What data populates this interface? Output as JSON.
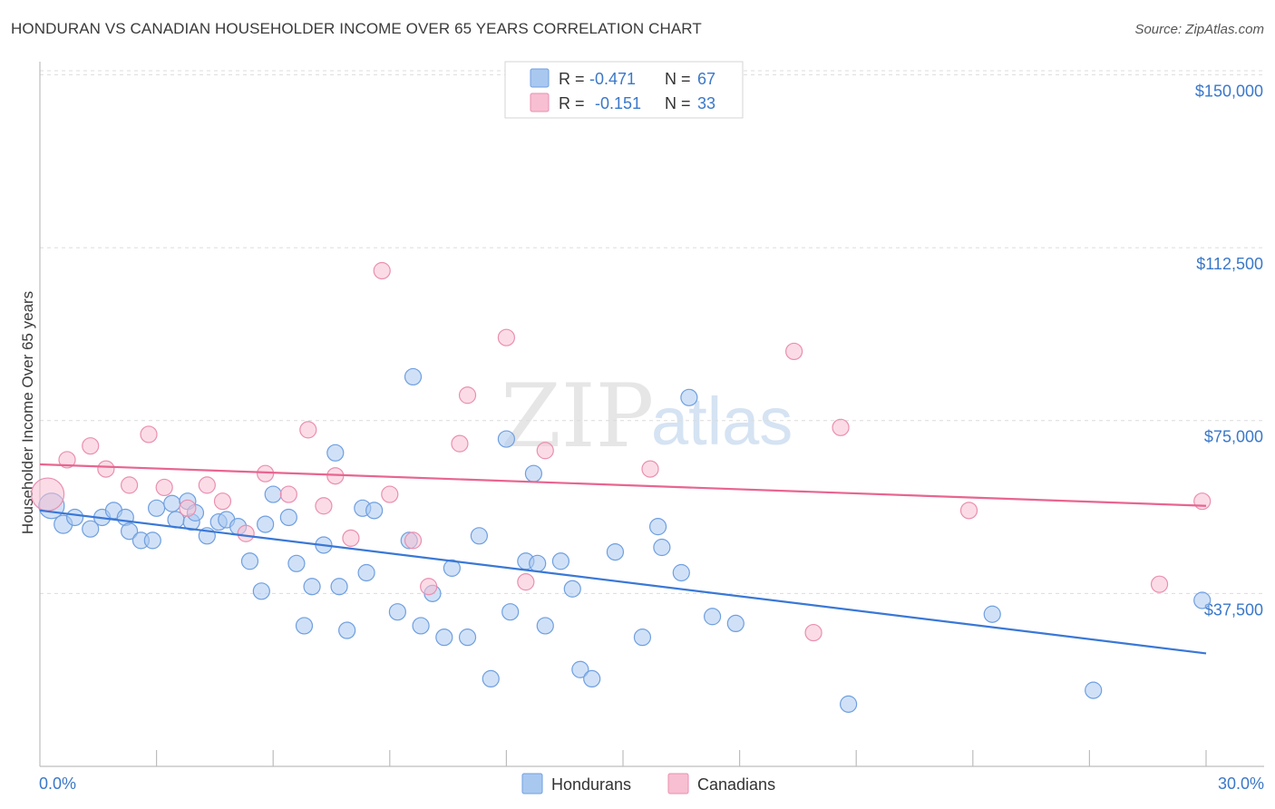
{
  "header": {
    "title": "HONDURAN VS CANADIAN HOUSEHOLDER INCOME OVER 65 YEARS CORRELATION CHART",
    "source": "Source: ZipAtlas.com"
  },
  "watermark": {
    "zip": "ZIP",
    "atlas": "atlas"
  },
  "legend_top": [
    {
      "r_label": "R =",
      "r_value": "-0.471",
      "n_label": "N =",
      "n_value": "67",
      "color": "#a9c8f0",
      "stroke": "#6f9fe0"
    },
    {
      "r_label": "R =",
      "r_value": "-0.151",
      "n_label": "N =",
      "n_value": "33",
      "color": "#f7bfd1",
      "stroke": "#ea8fb0"
    }
  ],
  "legend_bottom": [
    {
      "label": "Hondurans",
      "color": "#a9c8f0",
      "stroke": "#6f9fe0"
    },
    {
      "label": "Canadians",
      "color": "#f7bfd1",
      "stroke": "#ea8fb0"
    }
  ],
  "chart_data": {
    "type": "scatter",
    "title": "HONDURAN VS CANADIAN HOUSEHOLDER INCOME OVER 65 YEARS CORRELATION CHART",
    "xlabel": "",
    "ylabel": "Householder Income Over 65 years",
    "xlim": [
      0,
      30
    ],
    "ylim": [
      0,
      155000
    ],
    "x_tick_labels": [
      "0.0%",
      "30.0%"
    ],
    "y_ticks": [
      37500,
      75000,
      112500,
      150000
    ],
    "y_tick_labels": [
      "$37,500",
      "$75,000",
      "$112,500",
      "$150,000"
    ],
    "grid": true,
    "legend_position": "top-center",
    "series": [
      {
        "name": "Hondurans",
        "color": "#3a78d6",
        "fill": "#a9c8f0",
        "trend": {
          "x": [
            0,
            30
          ],
          "y": [
            55500,
            24500
          ]
        },
        "points": [
          [
            0.3,
            56500,
            14
          ],
          [
            0.6,
            52500,
            10
          ],
          [
            0.9,
            54000,
            9
          ],
          [
            1.3,
            51500,
            9
          ],
          [
            1.6,
            54000,
            9
          ],
          [
            1.9,
            55500,
            9
          ],
          [
            2.2,
            54000,
            9
          ],
          [
            2.3,
            51000,
            9
          ],
          [
            2.6,
            49000,
            9
          ],
          [
            2.9,
            49000,
            9
          ],
          [
            3.0,
            56000,
            9
          ],
          [
            3.4,
            57000,
            9
          ],
          [
            3.5,
            53500,
            9
          ],
          [
            3.8,
            57500,
            9
          ],
          [
            3.9,
            53000,
            9
          ],
          [
            4.3,
            50000,
            9
          ],
          [
            4.6,
            53000,
            9
          ],
          [
            4.8,
            53500,
            9
          ],
          [
            5.1,
            52000,
            9
          ],
          [
            5.4,
            44500,
            9
          ],
          [
            5.7,
            38000,
            9
          ],
          [
            5.8,
            52500,
            9
          ],
          [
            6.0,
            59000,
            9
          ],
          [
            6.4,
            54000,
            9
          ],
          [
            6.6,
            44000,
            9
          ],
          [
            6.8,
            30500,
            9
          ],
          [
            7.0,
            39000,
            9
          ],
          [
            7.3,
            48000,
            9
          ],
          [
            7.6,
            68000,
            9
          ],
          [
            7.9,
            29500,
            9
          ],
          [
            7.7,
            39000,
            9
          ],
          [
            8.3,
            56000,
            9
          ],
          [
            8.4,
            42000,
            9
          ],
          [
            9.2,
            33500,
            9
          ],
          [
            9.5,
            49000,
            9
          ],
          [
            9.6,
            84500,
            9
          ],
          [
            9.8,
            30500,
            9
          ],
          [
            10.1,
            37500,
            9
          ],
          [
            10.4,
            28000,
            9
          ],
          [
            10.6,
            43000,
            9
          ],
          [
            11.0,
            28000,
            9
          ],
          [
            11.3,
            50000,
            9
          ],
          [
            11.6,
            19000,
            9
          ],
          [
            12.0,
            71000,
            9
          ],
          [
            12.1,
            33500,
            9
          ],
          [
            12.5,
            44500,
            9
          ],
          [
            12.7,
            63500,
            9
          ],
          [
            13.0,
            30500,
            9
          ],
          [
            13.4,
            44500,
            9
          ],
          [
            13.7,
            38500,
            9
          ],
          [
            13.9,
            21000,
            9
          ],
          [
            14.2,
            19000,
            9
          ],
          [
            14.8,
            46500,
            9
          ],
          [
            15.5,
            28000,
            9
          ],
          [
            15.9,
            52000,
            9
          ],
          [
            16.0,
            47500,
            9
          ],
          [
            16.5,
            42000,
            9
          ],
          [
            16.7,
            80000,
            9
          ],
          [
            17.3,
            32500,
            9
          ],
          [
            17.9,
            31000,
            9
          ],
          [
            20.8,
            13500,
            9
          ],
          [
            24.5,
            33000,
            9
          ],
          [
            27.1,
            16500,
            9
          ],
          [
            29.9,
            36000,
            9
          ],
          [
            8.6,
            55500,
            9
          ],
          [
            12.8,
            44000,
            9
          ],
          [
            4.0,
            55000,
            9
          ]
        ]
      },
      {
        "name": "Canadians",
        "color": "#e8658f",
        "fill": "#f7bfd1",
        "trend": {
          "x": [
            0,
            30
          ],
          "y": [
            65500,
            56500
          ]
        },
        "points": [
          [
            0.2,
            59000,
            18
          ],
          [
            0.7,
            66500,
            9
          ],
          [
            1.3,
            69500,
            9
          ],
          [
            1.7,
            64500,
            9
          ],
          [
            2.3,
            61000,
            9
          ],
          [
            2.8,
            72000,
            9
          ],
          [
            3.2,
            60500,
            9
          ],
          [
            3.8,
            56000,
            9
          ],
          [
            4.3,
            61000,
            9
          ],
          [
            4.7,
            57500,
            9
          ],
          [
            5.3,
            50500,
            9
          ],
          [
            5.8,
            63500,
            9
          ],
          [
            6.4,
            59000,
            9
          ],
          [
            6.9,
            73000,
            9
          ],
          [
            7.3,
            56500,
            9
          ],
          [
            7.6,
            63000,
            9
          ],
          [
            8.0,
            49500,
            9
          ],
          [
            8.8,
            107500,
            9
          ],
          [
            9.0,
            59000,
            9
          ],
          [
            9.6,
            49000,
            9
          ],
          [
            10.0,
            39000,
            9
          ],
          [
            10.8,
            70000,
            9
          ],
          [
            11.0,
            80500,
            9
          ],
          [
            12.0,
            93000,
            9
          ],
          [
            12.5,
            40000,
            9
          ],
          [
            13.0,
            68500,
            9
          ],
          [
            15.7,
            64500,
            9
          ],
          [
            19.4,
            90000,
            9
          ],
          [
            19.9,
            29000,
            9
          ],
          [
            20.6,
            73500,
            9
          ],
          [
            23.9,
            55500,
            9
          ],
          [
            28.8,
            39500,
            9
          ],
          [
            29.9,
            57500,
            9
          ]
        ]
      }
    ]
  }
}
